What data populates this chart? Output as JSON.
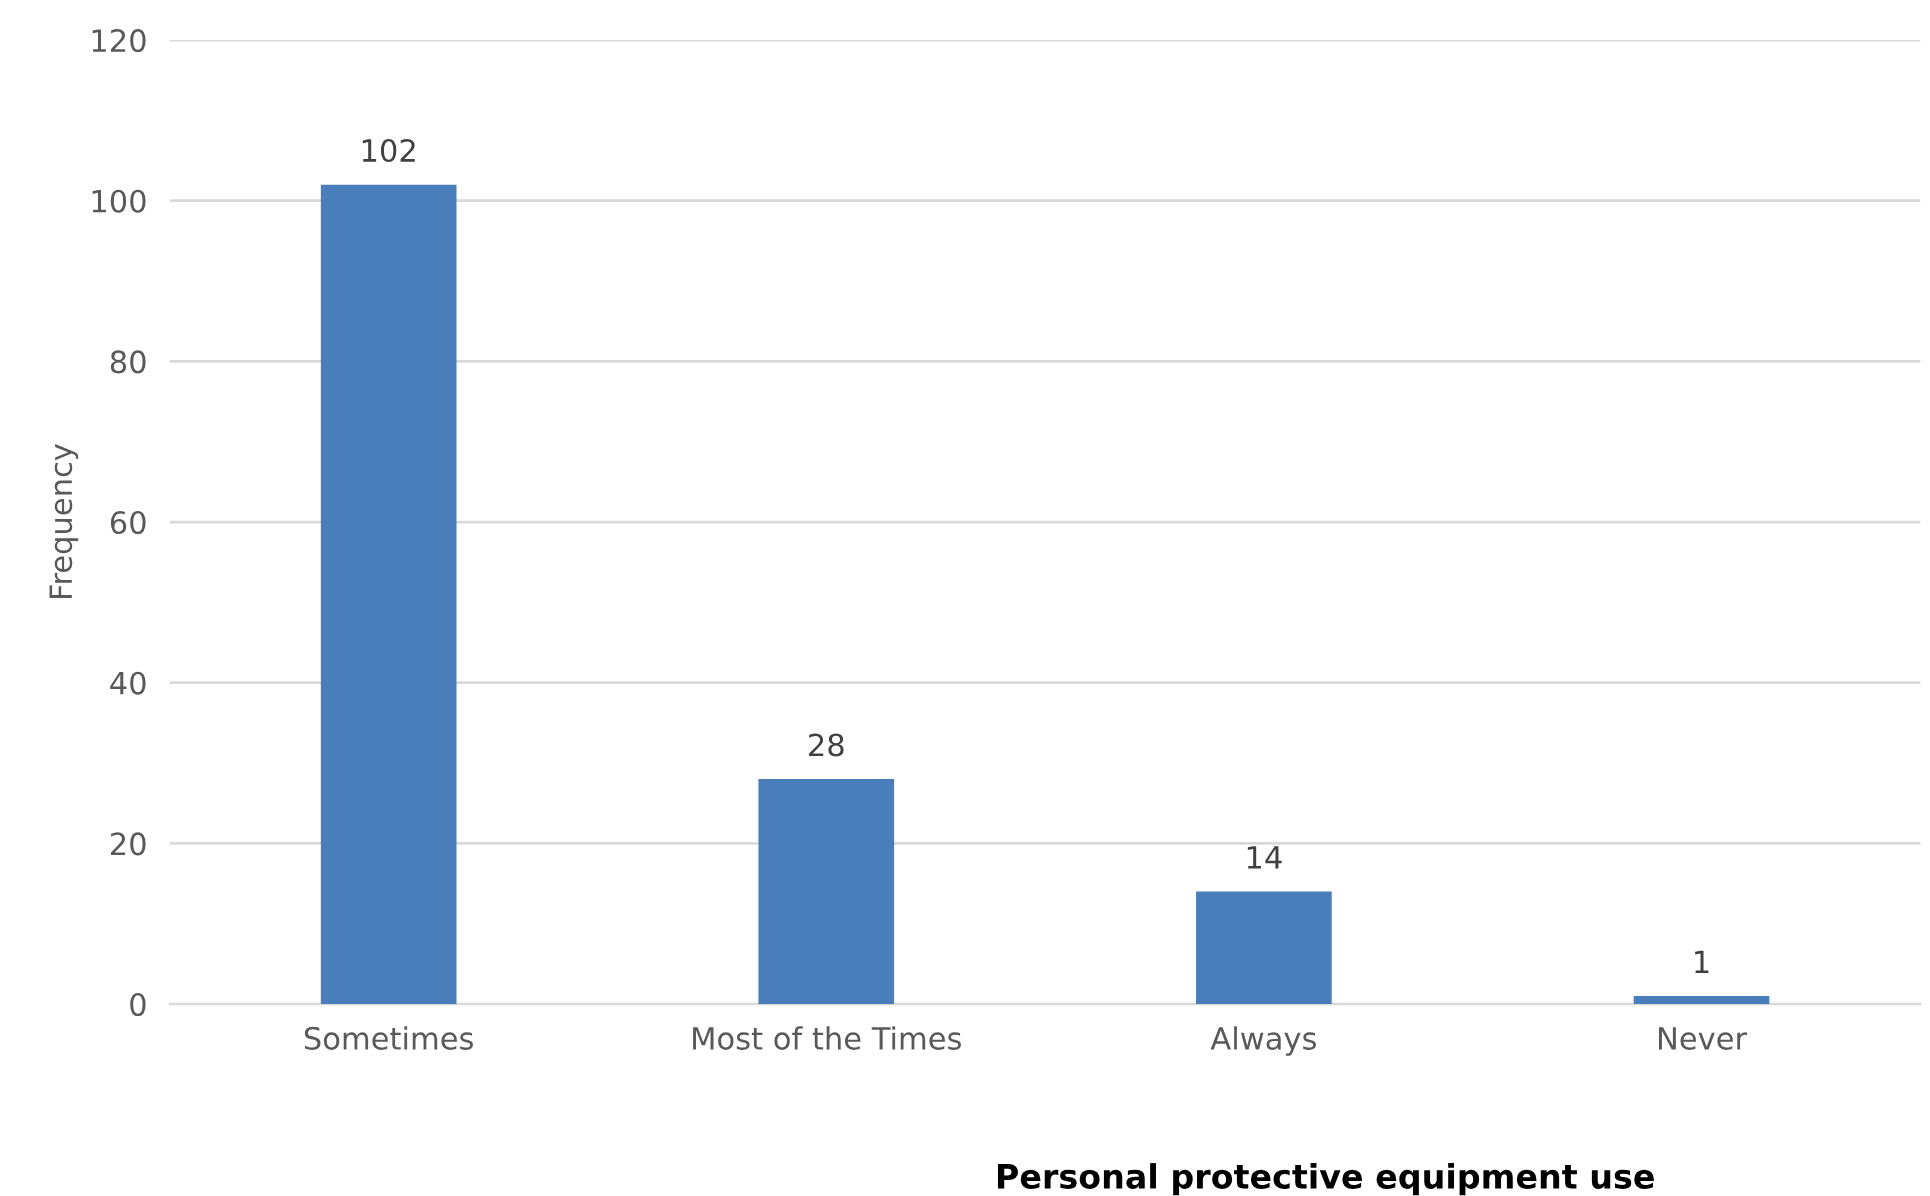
{
  "chart_data": {
    "type": "bar",
    "xlabel": "Personal protective equipment use",
    "ylabel": "Frequency",
    "categories": [
      "Sometimes",
      "Most of the Times",
      "Always",
      "Never"
    ],
    "values": [
      102,
      28,
      14,
      1
    ],
    "color": "#4a7ebb",
    "ylim": [
      0,
      120
    ],
    "yticks": [
      0,
      20,
      40,
      60,
      80,
      100,
      120
    ],
    "grid": "y",
    "data_labels": true,
    "legend": false
  }
}
